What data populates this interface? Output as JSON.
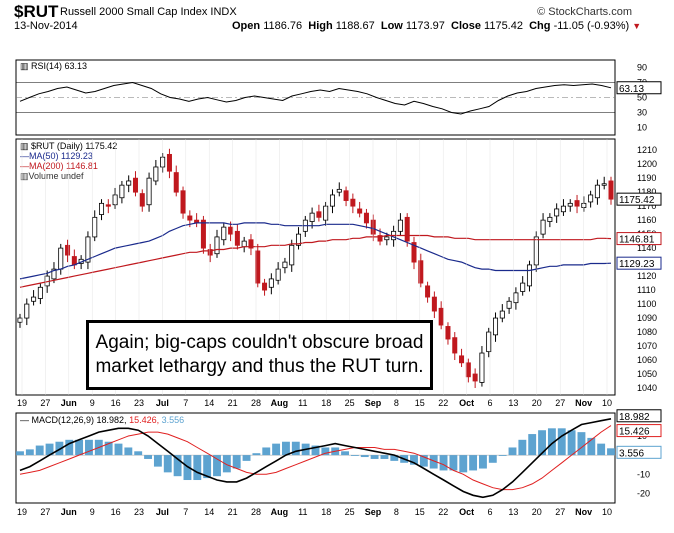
{
  "header": {
    "ticker": "$RUT",
    "name": "Russell 2000 Small Cap Index",
    "exchange": "INDX",
    "brand": "© StockCharts.com",
    "date": "13-Nov-2014",
    "open_label": "Open",
    "open": "1186.76",
    "high_label": "High",
    "high": "1188.67",
    "low_label": "Low",
    "low": "1173.97",
    "close_label": "Close",
    "close": "1175.42",
    "chg_label": "Chg",
    "chg": "-11.05 (-0.93%)"
  },
  "annotation": {
    "line1": "Again; big-caps couldn't obscure broad",
    "line2": "market lethargy and thus the RUT turn."
  },
  "colors": {
    "up": "#ffffff",
    "down": "#c0181e",
    "price_line": "#000000",
    "ma50": "#1a2a8c",
    "ma200": "#c0181e",
    "macd_line": "#000000",
    "signal_line": "#e02020",
    "hist": "#5da3d0"
  },
  "chart_data": [
    {
      "type": "line",
      "panel": "RSI",
      "legend": "RSI(14) 63.13",
      "last_value_label": "63.13",
      "yticks": [
        10,
        30,
        50,
        70,
        90
      ],
      "ylim": [
        0,
        100
      ],
      "reference_lines": [
        30,
        70
      ],
      "values": [
        45,
        50,
        55,
        58,
        62,
        64,
        60,
        56,
        58,
        62,
        66,
        68,
        70,
        66,
        62,
        55,
        50,
        48,
        45,
        48,
        50,
        47,
        44,
        46,
        50,
        52,
        50,
        48,
        46,
        52,
        55,
        58,
        60,
        58,
        62,
        60,
        58,
        55,
        50,
        46,
        42,
        40,
        45,
        42,
        38,
        35,
        30,
        28,
        32,
        35,
        38,
        46,
        52,
        56,
        58,
        62,
        64,
        66,
        67,
        66,
        67,
        68,
        66,
        63
      ]
    },
    {
      "type": "candlestick",
      "panel": "Price",
      "legend": [
        "$RUT (Daily) 1175.42",
        "MA(50) 1129.23",
        "MA(200) 1146.81",
        "Volume undef"
      ],
      "last_value_labels": [
        "1175.42",
        "1146.81",
        "1129.23"
      ],
      "ylim": [
        1035,
        1218
      ],
      "yticks": [
        1040,
        1050,
        1060,
        1070,
        1080,
        1090,
        1100,
        1110,
        1120,
        1130,
        1140,
        1150,
        1160,
        1170,
        1180,
        1190,
        1200,
        1210
      ],
      "x_tick_labels": [
        "19",
        "27",
        "Jun",
        "9",
        "16",
        "23",
        "Jul",
        "7",
        "14",
        "21",
        "28",
        "Aug",
        "11",
        "18",
        "25",
        "Sep",
        "8",
        "15",
        "22",
        "Oct",
        "6",
        "13",
        "20",
        "27",
        "Nov",
        "10"
      ],
      "closes": [
        1090,
        1100,
        1105,
        1112,
        1120,
        1125,
        1140,
        1135,
        1128,
        1132,
        1148,
        1162,
        1172,
        1170,
        1178,
        1185,
        1188,
        1180,
        1170,
        1190,
        1198,
        1205,
        1195,
        1180,
        1165,
        1160,
        1158,
        1140,
        1135,
        1148,
        1155,
        1150,
        1142,
        1145,
        1140,
        1115,
        1110,
        1118,
        1125,
        1130,
        1142,
        1150,
        1160,
        1165,
        1162,
        1170,
        1178,
        1182,
        1174,
        1170,
        1165,
        1158,
        1150,
        1145,
        1148,
        1152,
        1160,
        1145,
        1130,
        1115,
        1105,
        1095,
        1085,
        1075,
        1065,
        1058,
        1048,
        1045,
        1065,
        1080,
        1090,
        1095,
        1102,
        1108,
        1115,
        1128,
        1148,
        1160,
        1162,
        1168,
        1170,
        1172,
        1170,
        1172,
        1178,
        1185,
        1186,
        1175
      ],
      "ma50": [
        1118,
        1119,
        1120,
        1121,
        1122,
        1124,
        1125,
        1127,
        1128,
        1130,
        1132,
        1134,
        1136,
        1138,
        1140,
        1141,
        1142,
        1143,
        1144,
        1145,
        1147,
        1149,
        1152,
        1154,
        1156,
        1157,
        1158,
        1158,
        1158,
        1158,
        1158,
        1157,
        1157,
        1158,
        1158,
        1158,
        1158,
        1157,
        1157,
        1156,
        1156,
        1156,
        1156,
        1156,
        1156,
        1157,
        1157,
        1157,
        1157,
        1157,
        1156,
        1155,
        1154,
        1152,
        1150,
        1148,
        1146,
        1144,
        1142,
        1140,
        1138,
        1136,
        1134,
        1132,
        1131,
        1130,
        1128,
        1126,
        1125,
        1125,
        1124,
        1124,
        1124,
        1124,
        1124,
        1124,
        1125,
        1126,
        1127,
        1127,
        1128,
        1128,
        1128,
        1128,
        1129,
        1129,
        1129,
        1129.23
      ],
      "ma200": [
        1112,
        1113,
        1114,
        1115,
        1116,
        1117,
        1118,
        1119,
        1120,
        1121,
        1122,
        1123,
        1124,
        1125,
        1126,
        1127,
        1128,
        1129,
        1130,
        1131,
        1132,
        1133,
        1134,
        1135,
        1136,
        1137,
        1137,
        1138,
        1138,
        1139,
        1139,
        1140,
        1140,
        1141,
        1141,
        1141,
        1141,
        1142,
        1142,
        1142,
        1143,
        1143,
        1144,
        1144,
        1145,
        1145,
        1146,
        1146,
        1146,
        1147,
        1147,
        1148,
        1148,
        1148,
        1149,
        1149,
        1149,
        1149,
        1149,
        1149,
        1149,
        1148,
        1148,
        1148,
        1147,
        1147,
        1147,
        1146,
        1146,
        1146,
        1146,
        1146,
        1146,
        1146,
        1146,
        1146,
        1146,
        1146,
        1146,
        1146,
        1146,
        1146,
        1146,
        1146,
        1146,
        1147,
        1147,
        1146.81
      ]
    },
    {
      "type": "line",
      "panel": "MACD",
      "legend": [
        "MACD(12,26,9) 18.982,",
        "15.426,",
        "3.556"
      ],
      "last_value_labels": [
        "18.982",
        "15.426",
        "3.556"
      ],
      "ylim": [
        -25,
        22
      ],
      "yticks": [
        -20,
        -10,
        0,
        10
      ],
      "macd": [
        -8,
        -6,
        -3,
        0,
        3,
        6,
        8,
        10,
        12,
        13,
        14,
        14,
        13,
        10,
        6,
        2,
        -2,
        -6,
        -9,
        -11,
        -13,
        -14,
        -14,
        -12,
        -9,
        -6,
        -3,
        0,
        2,
        3,
        4,
        5,
        6,
        5,
        4,
        3,
        2,
        1,
        0,
        -2,
        -4,
        -7,
        -10,
        -13,
        -16,
        -19,
        -21,
        -22,
        -21,
        -18,
        -14,
        -9,
        -4,
        1,
        6,
        10,
        13,
        16,
        17,
        18,
        18.982
      ],
      "signal": [
        -10,
        -9,
        -8,
        -6,
        -4,
        -2,
        0,
        2,
        4,
        6,
        8,
        10,
        11,
        12,
        12,
        11,
        9,
        7,
        4,
        1,
        -2,
        -5,
        -7,
        -9,
        -10,
        -10,
        -9,
        -7,
        -5,
        -3,
        -1,
        1,
        2,
        3,
        4,
        4,
        4,
        3,
        3,
        2,
        1,
        -1,
        -3,
        -5,
        -8,
        -10,
        -13,
        -15,
        -17,
        -18,
        -18,
        -17,
        -15,
        -12,
        -8,
        -4,
        0,
        4,
        8,
        12,
        15.426
      ],
      "histogram": [
        2,
        3,
        5,
        6,
        7,
        8,
        8,
        8,
        8,
        7,
        6,
        4,
        2,
        -2,
        -6,
        -9,
        -11,
        -13,
        -13,
        -12,
        -11,
        -9,
        -7,
        -3,
        1,
        4,
        6,
        7,
        7,
        6,
        5,
        4,
        4,
        2,
        0,
        -1,
        -2,
        -2,
        -3,
        -4,
        -5,
        -6,
        -7,
        -8,
        -8,
        -9,
        -8,
        -7,
        -4,
        0,
        4,
        8,
        11,
        13,
        14,
        14,
        13,
        12,
        9,
        6,
        3.556
      ]
    }
  ]
}
